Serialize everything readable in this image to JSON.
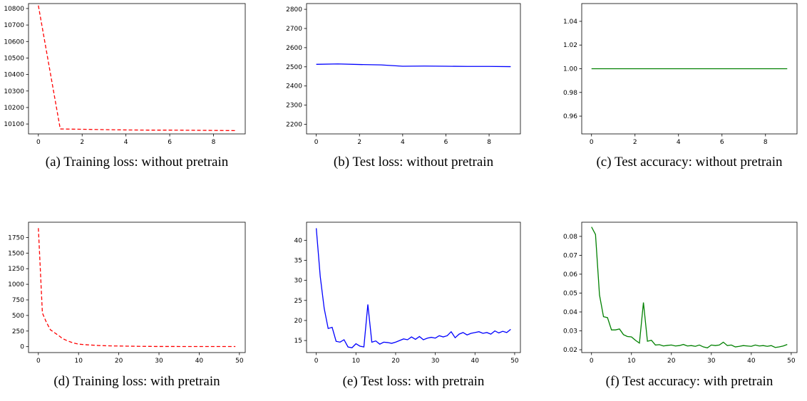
{
  "chart_data": [
    {
      "type": "line",
      "caption": "(a) Training loss: without pretrain",
      "style": {
        "color": "#ff0000",
        "dash": true
      },
      "xlim": [
        -0.45,
        9.45
      ],
      "ylim": [
        10040,
        10830
      ],
      "xticks": [
        0,
        2,
        4,
        6,
        8
      ],
      "yticks": [
        10100,
        10200,
        10300,
        10400,
        10500,
        10600,
        10700,
        10800
      ],
      "series": [
        {
          "x": [
            0,
            1,
            2,
            3,
            4,
            5,
            6,
            7,
            8,
            9
          ],
          "y": [
            10818,
            10070,
            10068,
            10066,
            10064,
            10063,
            10063,
            10062,
            10061,
            10060
          ]
        }
      ]
    },
    {
      "type": "line",
      "caption": "(b) Test loss: without pretrain",
      "style": {
        "color": "#0000ff",
        "dash": false
      },
      "xlim": [
        -0.45,
        9.45
      ],
      "ylim": [
        2150,
        2830
      ],
      "xticks": [
        0,
        2,
        4,
        6,
        8
      ],
      "yticks": [
        2200,
        2300,
        2400,
        2500,
        2600,
        2700,
        2800
      ],
      "series": [
        {
          "x": [
            0,
            1,
            2,
            3,
            4,
            5,
            6,
            7,
            8,
            9
          ],
          "y": [
            2513,
            2515,
            2512,
            2510,
            2503,
            2504,
            2503,
            2502,
            2502,
            2501
          ]
        }
      ]
    },
    {
      "type": "line",
      "caption": "(c) Test accuracy: without pretrain",
      "style": {
        "color": "#008000",
        "dash": false
      },
      "xlim": [
        -0.45,
        9.45
      ],
      "ylim": [
        0.945,
        1.055
      ],
      "xticks": [
        0,
        2,
        4,
        6,
        8
      ],
      "yticks": [
        0.96,
        0.98,
        1.0,
        1.02,
        1.04
      ],
      "yformat": 2,
      "series": [
        {
          "x": [
            0,
            1,
            2,
            3,
            4,
            5,
            6,
            7,
            8,
            9
          ],
          "y": [
            1,
            1,
            1,
            1,
            1,
            1,
            1,
            1,
            1,
            1
          ]
        }
      ]
    },
    {
      "type": "line",
      "caption": "(d) Training loss: with pretrain",
      "style": {
        "color": "#ff0000",
        "dash": true
      },
      "xlim": [
        -2.45,
        51.45
      ],
      "ylim": [
        -95,
        1995
      ],
      "xticks": [
        0,
        10,
        20,
        30,
        40,
        50
      ],
      "yticks": [
        0,
        250,
        500,
        750,
        1000,
        1250,
        1500,
        1750
      ],
      "series": [
        {
          "x": [
            0,
            1,
            2,
            3,
            4,
            5,
            6,
            7,
            8,
            9,
            10,
            11,
            12,
            13,
            14,
            15,
            16,
            17,
            18,
            19,
            20,
            21,
            22,
            23,
            24,
            25,
            26,
            27,
            28,
            29,
            30,
            31,
            32,
            33,
            34,
            35,
            36,
            37,
            38,
            39,
            40,
            41,
            42,
            43,
            44,
            45,
            46,
            47,
            48,
            49
          ],
          "y": [
            1900,
            540,
            390,
            270,
            225,
            180,
            130,
            100,
            75,
            55,
            40,
            35,
            30,
            26,
            22,
            18,
            16,
            14,
            12,
            11,
            10,
            9,
            8,
            7,
            6,
            5,
            5,
            4,
            4,
            3,
            3,
            3,
            3,
            3,
            3,
            2,
            2,
            2,
            2,
            2,
            2,
            2,
            2,
            2,
            2,
            2,
            2,
            2,
            2,
            2
          ]
        }
      ]
    },
    {
      "type": "line",
      "caption": "(e) Test loss: with pretrain",
      "style": {
        "color": "#0000ff",
        "dash": false
      },
      "xlim": [
        -2.45,
        51.45
      ],
      "ylim": [
        12,
        44.5
      ],
      "xticks": [
        0,
        10,
        20,
        30,
        40,
        50
      ],
      "yticks": [
        15,
        20,
        25,
        30,
        35,
        40
      ],
      "series": [
        {
          "x": [
            0,
            1,
            2,
            3,
            4,
            5,
            6,
            7,
            8,
            9,
            10,
            11,
            12,
            13,
            14,
            15,
            16,
            17,
            18,
            19,
            20,
            21,
            22,
            23,
            24,
            25,
            26,
            27,
            28,
            29,
            30,
            31,
            32,
            33,
            34,
            35,
            36,
            37,
            38,
            39,
            40,
            41,
            42,
            43,
            44,
            45,
            46,
            47,
            48,
            49
          ],
          "y": [
            43,
            31,
            23,
            18,
            18.3,
            14.8,
            14.6,
            15.2,
            13.4,
            13.2,
            14.2,
            13.6,
            13.4,
            24,
            14.6,
            14.9,
            14.1,
            14.6,
            14.5,
            14.3,
            14.6,
            15,
            15.4,
            15.2,
            15.9,
            15.3,
            16,
            15.2,
            15.6,
            15.8,
            15.6,
            16.2,
            15.9,
            16.2,
            17.2,
            15.7,
            16.6,
            17,
            16.4,
            16.8,
            17,
            17.2,
            16.8,
            17,
            16.6,
            17.4,
            16.9,
            17.3,
            17,
            17.8
          ]
        }
      ]
    },
    {
      "type": "line",
      "caption": "(f) Test accuracy: with pretrain",
      "style": {
        "color": "#008000",
        "dash": false
      },
      "xlim": [
        -2.45,
        51.45
      ],
      "ylim": [
        0.0185,
        0.0875
      ],
      "xticks": [
        0,
        10,
        20,
        30,
        40,
        50
      ],
      "yticks": [
        0.02,
        0.03,
        0.04,
        0.05,
        0.06,
        0.07,
        0.08
      ],
      "yformat": 2,
      "series": [
        {
          "x": [
            0,
            1,
            2,
            3,
            4,
            5,
            6,
            7,
            8,
            9,
            10,
            11,
            12,
            13,
            14,
            15,
            16,
            17,
            18,
            19,
            20,
            21,
            22,
            23,
            24,
            25,
            26,
            27,
            28,
            29,
            30,
            31,
            32,
            33,
            34,
            35,
            36,
            37,
            38,
            39,
            40,
            41,
            42,
            43,
            44,
            45,
            46,
            47,
            48,
            49
          ],
          "y": [
            0.085,
            0.081,
            0.049,
            0.0375,
            0.037,
            0.0305,
            0.0305,
            0.031,
            0.028,
            0.027,
            0.0268,
            0.025,
            0.0235,
            0.045,
            0.0245,
            0.025,
            0.0225,
            0.0227,
            0.022,
            0.0223,
            0.0225,
            0.022,
            0.0222,
            0.0228,
            0.022,
            0.0222,
            0.0218,
            0.0225,
            0.0215,
            0.021,
            0.0225,
            0.0222,
            0.0225,
            0.024,
            0.0222,
            0.0225,
            0.0215,
            0.0218,
            0.0222,
            0.022,
            0.0218,
            0.0225,
            0.022,
            0.0222,
            0.0218,
            0.0222,
            0.0212,
            0.0215,
            0.022,
            0.0228
          ]
        }
      ]
    }
  ]
}
